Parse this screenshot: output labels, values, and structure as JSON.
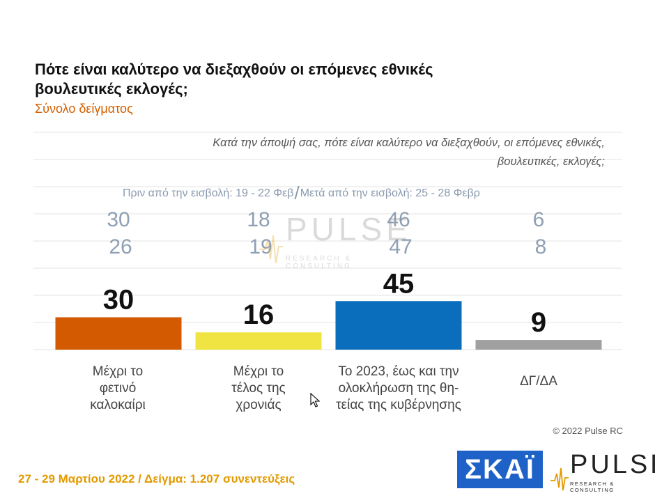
{
  "header": {
    "title": "Πότε είναι καλύτερο να διεξαχθούν οι επόμενες εθνικές βουλευτικές εκλογές;",
    "subtitle": "Σύνολο δείγματος",
    "question": "Κατά την άποψή σας, πότε είναι καλύτερο να διεξαχθούν, οι επόμενες εθνικές, βουλευτικές, εκλογές;"
  },
  "periods": {
    "before": "Πριν από την εισβολή: 19 - 22 Φεβ",
    "after": "Μετά από την εισβολή: 25 - 28 Φεβρ"
  },
  "watermark": {
    "word": "PULSE",
    "tagline": "RESEARCH & CONSULTING"
  },
  "chart_data": {
    "type": "bar",
    "categories": [
      "Μέχρι το φετινό καλοκαίρι",
      "Μέχρι το τέλος της χρονιάς",
      "Το 2023, έως και την ολοκλήρωση της θη-τείας της κυβέρνησης",
      "ΔΓ/ΔΑ"
    ],
    "values": [
      30,
      16,
      45,
      9
    ],
    "colors": [
      "#d35a00",
      "#f0e442",
      "#0a6ebd",
      "#a0a0a0"
    ],
    "previous_waves": [
      {
        "name": "Πριν από την εισβολή: 19 - 22 Φεβ",
        "values": [
          30,
          18,
          46,
          6
        ]
      },
      {
        "name": "Μετά από την εισβολή: 25 - 28 Φεβρ",
        "values": [
          26,
          19,
          47,
          8
        ]
      }
    ],
    "ylim": [
      0,
      100
    ],
    "grid": true
  },
  "category_labels": [
    "Μέχρι το\nφετινό\nκαλοκαίρι",
    "Μέχρι το\nτέλος της\nχρονιάς",
    "Το 2023, έως και την\nολοκλήρωση της θη-\nτείας της κυβέρνησης",
    "ΔΓ/ΔΑ"
  ],
  "footer": {
    "copyright": "© 2022 Pulse RC",
    "date_sample": "27 - 29  Μαρτίου  2022  /  Δείγμα:  1.207 συνεντεύξεις",
    "skai_logo": "ΣΚΑΪ",
    "pulse_logo": "PULSE",
    "pulse_tagline": "RESEARCH & CONSULTING"
  },
  "colors": {
    "accent_orange": "#d45f00",
    "footer_gold": "#e39a00",
    "skai_blue": "#1e62c8"
  }
}
